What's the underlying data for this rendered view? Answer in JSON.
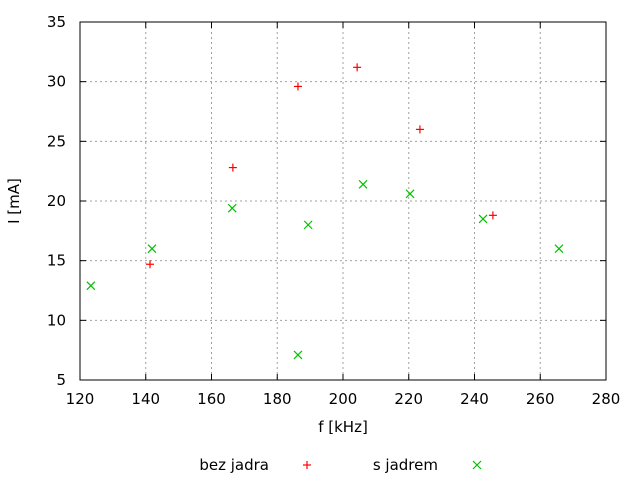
{
  "chart_data": {
    "type": "scatter",
    "xlabel": "f [kHz]",
    "ylabel": "I [mA]",
    "xlim": [
      120,
      280
    ],
    "ylim": [
      5,
      35
    ],
    "xticks": [
      120,
      140,
      160,
      180,
      200,
      220,
      240,
      260,
      280
    ],
    "yticks": [
      5,
      10,
      15,
      20,
      25,
      30,
      35
    ],
    "grid": true,
    "legend_position": "bottom",
    "series": [
      {
        "name": "bez jadra",
        "marker": "plus",
        "color": "#ff0000",
        "x": [
          141.3,
          166.5,
          186.3,
          204.3,
          223.4,
          245.6
        ],
        "y": [
          14.7,
          22.8,
          29.6,
          31.2,
          26.0,
          18.8
        ]
      },
      {
        "name": "s jadrem",
        "marker": "cross",
        "color": "#00c000",
        "x": [
          123.3,
          141.9,
          166.3,
          186.3,
          189.4,
          206.1,
          220.4,
          242.6,
          265.7
        ],
        "y": [
          12.9,
          16.0,
          19.4,
          7.1,
          18.0,
          21.4,
          20.6,
          18.5,
          16.0
        ]
      }
    ]
  }
}
